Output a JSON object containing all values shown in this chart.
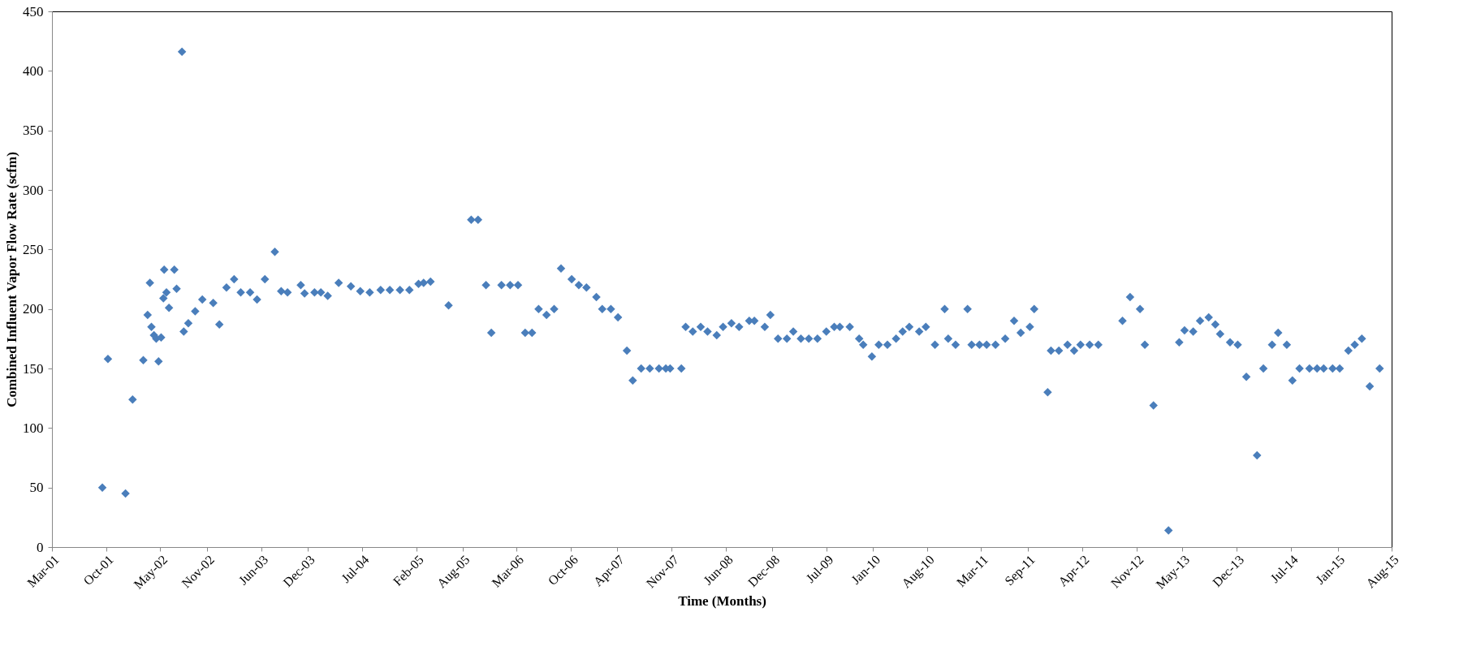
{
  "chart_data": {
    "type": "scatter",
    "xlabel": "Time (Months)",
    "ylabel": "Combined Influent Vapor Flow Rate (scfm)",
    "xlim": [
      "2001-03-01",
      "2015-08-01"
    ],
    "xticks": [
      {
        "value": "2001-03-01",
        "label": "Mar-01"
      },
      {
        "value": "2001-10-01",
        "label": "Oct-01"
      },
      {
        "value": "2002-05-01",
        "label": "May-02"
      },
      {
        "value": "2002-11-01",
        "label": "Nov-02"
      },
      {
        "value": "2003-06-01",
        "label": "Jun-03"
      },
      {
        "value": "2003-12-01",
        "label": "Dec-03"
      },
      {
        "value": "2004-07-01",
        "label": "Jul-04"
      },
      {
        "value": "2005-02-01",
        "label": "Feb-05"
      },
      {
        "value": "2005-08-01",
        "label": "Aug-05"
      },
      {
        "value": "2006-03-01",
        "label": "Mar-06"
      },
      {
        "value": "2006-10-01",
        "label": "Oct-06"
      },
      {
        "value": "2007-04-01",
        "label": "Apr-07"
      },
      {
        "value": "2007-11-01",
        "label": "Nov-07"
      },
      {
        "value": "2008-06-01",
        "label": "Jun-08"
      },
      {
        "value": "2008-12-01",
        "label": "Dec-08"
      },
      {
        "value": "2009-07-01",
        "label": "Jul-09"
      },
      {
        "value": "2010-01-01",
        "label": "Jan-10"
      },
      {
        "value": "2010-08-01",
        "label": "Aug-10"
      },
      {
        "value": "2011-03-01",
        "label": "Mar-11"
      },
      {
        "value": "2011-09-01",
        "label": "Sep-11"
      },
      {
        "value": "2012-04-01",
        "label": "Apr-12"
      },
      {
        "value": "2012-11-01",
        "label": "Nov-12"
      },
      {
        "value": "2013-05-01",
        "label": "May-13"
      },
      {
        "value": "2013-12-01",
        "label": "Dec-13"
      },
      {
        "value": "2014-07-01",
        "label": "Jul-14"
      },
      {
        "value": "2015-01-01",
        "label": "Jan-15"
      },
      {
        "value": "2015-08-01",
        "label": "Aug-15"
      }
    ],
    "ylim": [
      0,
      450
    ],
    "yticks": [
      0,
      50,
      100,
      150,
      200,
      250,
      300,
      350,
      400,
      450
    ],
    "grid": false,
    "legend": false,
    "marker": "diamond",
    "series": [
      {
        "color": "#4a7ebb",
        "x": [
          "2001-09-15",
          "2001-10-07",
          "2001-12-15",
          "2002-01-12",
          "2002-02-23",
          "2002-03-12",
          "2002-03-21",
          "2002-03-27",
          "2002-04-06",
          "2002-04-15",
          "2002-04-24",
          "2002-05-04",
          "2002-05-13",
          "2002-05-16",
          "2002-05-25",
          "2002-06-04",
          "2002-06-25",
          "2002-07-04",
          "2002-07-25",
          "2002-08-01",
          "2002-08-19",
          "2002-09-15",
          "2002-10-13",
          "2002-11-25",
          "2002-12-19",
          "2003-01-16",
          "2003-02-15",
          "2003-03-13",
          "2003-04-19",
          "2003-05-16",
          "2003-06-16",
          "2003-07-25",
          "2003-08-19",
          "2003-09-13",
          "2003-11-04",
          "2003-11-19",
          "2003-12-28",
          "2004-01-22",
          "2004-02-18",
          "2004-04-01",
          "2004-05-19",
          "2004-06-25",
          "2004-08-01",
          "2004-09-13",
          "2004-10-19",
          "2004-11-28",
          "2005-01-04",
          "2005-02-09",
          "2005-03-01",
          "2005-03-28",
          "2005-06-07",
          "2005-09-04",
          "2005-10-01",
          "2005-11-01",
          "2005-11-22",
          "2006-01-01",
          "2006-02-04",
          "2006-03-07",
          "2006-04-04",
          "2006-05-01",
          "2006-05-27",
          "2006-06-27",
          "2006-07-27",
          "2006-08-23",
          "2006-10-04",
          "2006-11-01",
          "2006-12-01",
          "2007-01-09",
          "2007-02-01",
          "2007-03-07",
          "2007-04-04",
          "2007-05-09",
          "2007-06-01",
          "2007-07-04",
          "2007-08-07",
          "2007-09-12",
          "2007-10-09",
          "2007-10-26",
          "2007-12-09",
          "2007-12-26",
          "2008-01-23",
          "2008-02-23",
          "2008-03-21",
          "2008-04-26",
          "2008-05-21",
          "2008-06-23",
          "2008-07-23",
          "2008-09-01",
          "2008-09-21",
          "2008-11-01",
          "2008-11-23",
          "2008-12-23",
          "2009-01-27",
          "2009-02-21",
          "2009-03-23",
          "2009-04-23",
          "2009-05-27",
          "2009-07-01",
          "2009-08-01",
          "2009-08-23",
          "2009-10-01",
          "2009-11-07",
          "2009-11-23",
          "2009-12-27",
          "2010-01-23",
          "2010-02-26",
          "2010-04-01",
          "2010-04-27",
          "2010-05-23",
          "2010-07-01",
          "2010-07-27",
          "2010-09-01",
          "2010-10-09",
          "2010-10-23",
          "2010-11-21",
          "2011-01-07",
          "2011-01-23",
          "2011-02-23",
          "2011-03-23",
          "2011-04-27",
          "2011-06-04",
          "2011-07-09",
          "2011-08-04",
          "2011-09-09",
          "2011-09-26",
          "2011-11-18",
          "2011-12-01",
          "2012-01-01",
          "2012-02-04",
          "2012-03-01",
          "2012-03-26",
          "2012-05-01",
          "2012-06-04",
          "2012-09-07",
          "2012-10-07",
          "2012-11-15",
          "2012-12-04",
          "2013-01-07",
          "2013-03-07",
          "2013-04-18",
          "2013-05-09",
          "2013-06-12",
          "2013-07-09",
          "2013-08-12",
          "2013-09-07",
          "2013-09-26",
          "2013-11-04",
          "2013-12-04",
          "2014-01-07",
          "2014-02-18",
          "2014-03-15",
          "2014-04-18",
          "2014-05-12",
          "2014-06-15",
          "2014-07-07",
          "2014-08-04",
          "2014-09-12",
          "2014-10-12",
          "2014-11-07",
          "2014-12-12",
          "2015-01-09",
          "2015-02-12",
          "2015-03-09",
          "2015-04-06",
          "2015-05-07",
          "2015-06-15"
        ],
        "values": [
          50,
          158,
          45,
          124,
          157,
          195,
          222,
          185,
          178,
          175,
          156,
          176,
          209,
          233,
          214,
          201,
          233,
          217,
          416,
          181,
          188,
          198,
          208,
          205,
          187,
          218,
          225,
          214,
          214,
          208,
          225,
          248,
          215,
          214,
          220,
          213,
          214,
          214,
          211,
          222,
          219,
          215,
          214,
          216,
          216,
          216,
          216,
          221,
          222,
          223,
          203,
          275,
          275,
          220,
          180,
          220,
          220,
          220,
          180,
          180,
          200,
          195,
          200,
          234,
          225,
          220,
          218,
          210,
          200,
          200,
          193,
          165,
          140,
          150,
          150,
          150,
          150,
          150,
          150,
          185,
          181,
          185,
          181,
          178,
          185,
          188,
          185,
          190,
          190,
          185,
          195,
          175,
          175,
          181,
          175,
          175,
          175,
          181,
          185,
          185,
          185,
          175,
          170,
          160,
          170,
          170,
          175,
          181,
          185,
          181,
          185,
          170,
          200,
          175,
          170,
          200,
          170,
          170,
          170,
          170,
          175,
          190,
          180,
          185,
          200,
          130,
          165,
          165,
          170,
          165,
          170,
          170,
          170,
          190,
          210,
          200,
          170,
          119,
          14,
          172,
          182,
          181,
          190,
          193,
          187,
          179,
          172,
          170,
          143,
          77,
          150,
          170,
          180,
          170,
          140,
          150,
          150,
          150,
          150,
          150,
          150,
          165,
          170,
          175,
          135,
          150
        ]
      }
    ]
  }
}
